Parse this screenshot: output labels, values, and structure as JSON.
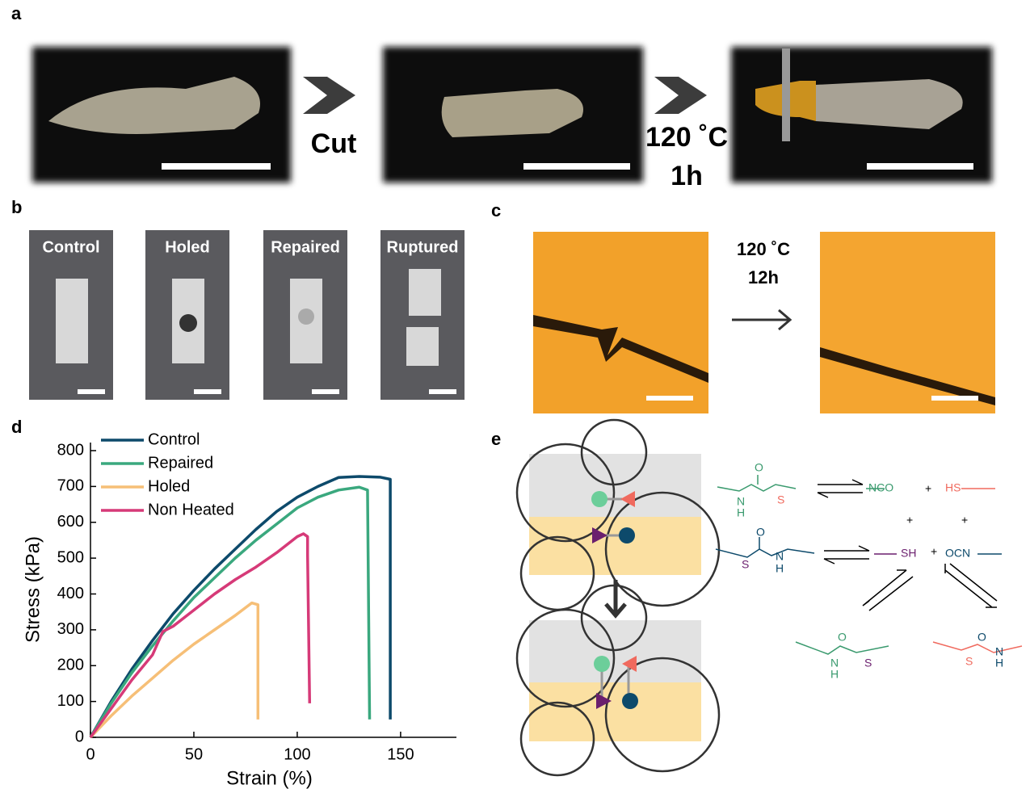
{
  "panels": {
    "a": "a",
    "b": "b",
    "c": "c",
    "d": "d",
    "e": "e"
  },
  "panel_a": {
    "step1": "Cut",
    "step2_temp": "120 ˚C",
    "step2_time": "1h"
  },
  "panel_b": {
    "labels": [
      "Control",
      "Holed",
      "Repaired",
      "Ruptured"
    ]
  },
  "panel_c": {
    "temp": "120 ˚C",
    "time": "12h"
  },
  "panel_e": {
    "groups": [
      "NCO",
      "HS",
      "SH",
      "OCN"
    ],
    "plus": "+",
    "molecules": [
      {
        "atoms": [
          "O",
          "N",
          "H",
          "S"
        ]
      },
      {
        "atoms": [
          "O",
          "S",
          "N",
          "H"
        ]
      },
      {
        "atoms": [
          "O",
          "N",
          "H",
          "S"
        ]
      },
      {
        "atoms": [
          "O",
          "S",
          "N",
          "H"
        ]
      }
    ]
  },
  "chart_data": {
    "type": "line",
    "x_label": "Strain (%)",
    "y_label": "Stress (kPa)",
    "xlim": [
      0,
      177
    ],
    "ylim": [
      0,
      800
    ],
    "xticks": [
      0,
      50,
      100,
      150
    ],
    "yticks": [
      0,
      100,
      200,
      300,
      400,
      500,
      600,
      700,
      800
    ],
    "legend": "upper-left",
    "series": [
      {
        "name": "Control",
        "color": "#0d4a6b",
        "x": [
          0,
          10,
          20,
          30,
          40,
          50,
          60,
          70,
          80,
          90,
          100,
          110,
          120,
          130,
          140,
          145,
          145
        ],
        "values": [
          0,
          100,
          190,
          270,
          345,
          410,
          470,
          525,
          580,
          630,
          670,
          700,
          725,
          728,
          726,
          720,
          50
        ]
      },
      {
        "name": "Repaired",
        "color": "#3aa87e",
        "x": [
          0,
          10,
          20,
          30,
          40,
          50,
          60,
          70,
          80,
          90,
          100,
          110,
          120,
          130,
          134,
          135
        ],
        "values": [
          0,
          95,
          180,
          255,
          325,
          390,
          445,
          500,
          550,
          595,
          640,
          670,
          690,
          698,
          690,
          50
        ]
      },
      {
        "name": "Holed",
        "color": "#f6bf77",
        "x": [
          0,
          10,
          20,
          30,
          40,
          50,
          60,
          70,
          78,
          81,
          81
        ],
        "values": [
          0,
          60,
          115,
          165,
          215,
          260,
          300,
          340,
          375,
          370,
          50
        ]
      },
      {
        "name": "Non Heated",
        "color": "#d63a78",
        "x": [
          0,
          10,
          20,
          30,
          35,
          40,
          50,
          60,
          70,
          80,
          90,
          100,
          103,
          105,
          105,
          106
        ],
        "values": [
          0,
          80,
          160,
          230,
          295,
          310,
          355,
          400,
          440,
          475,
          515,
          560,
          568,
          560,
          510,
          95
        ]
      }
    ]
  }
}
